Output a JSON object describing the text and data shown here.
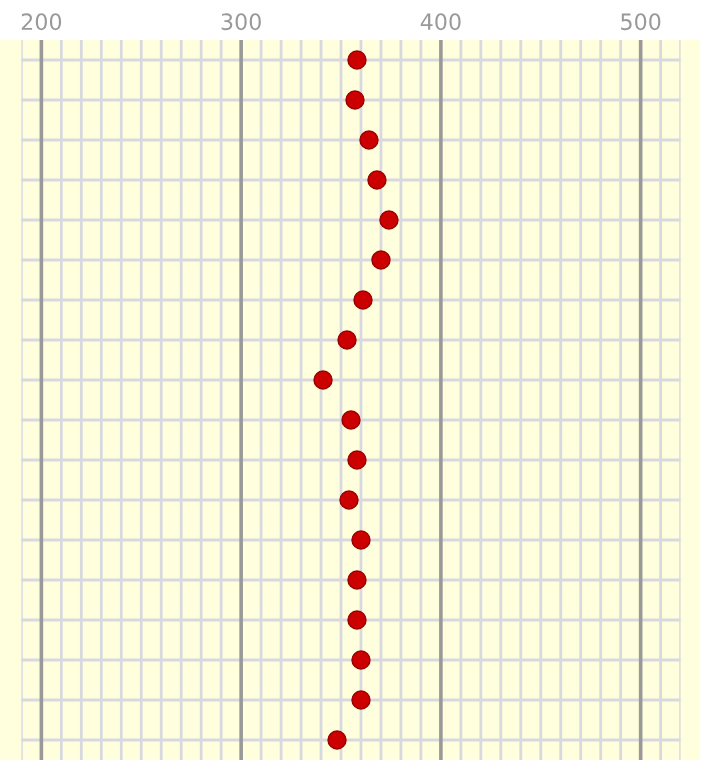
{
  "chart_data": {
    "type": "scatter",
    "orientation": "horizontal",
    "categories": [
      null,
      null,
      null,
      null,
      null,
      null,
      null,
      null,
      null,
      null,
      null,
      null,
      null,
      null,
      null,
      null,
      null,
      null
    ],
    "values": [
      358,
      357,
      364,
      368,
      374,
      370,
      361,
      353,
      341,
      355,
      358,
      354,
      360,
      358,
      358,
      360,
      360,
      348
    ],
    "color": "#cc0000",
    "marker": "circle",
    "xlim": [
      190,
      520
    ],
    "xticks": [
      {
        "value": 190,
        "label": null
      },
      200,
      {
        "value": 210,
        "label": null
      },
      {
        "value": 220,
        "label": null
      },
      {
        "value": 230,
        "label": null
      },
      {
        "value": 240,
        "label": null
      },
      {
        "value": 250,
        "label": null
      },
      {
        "value": 260,
        "label": null
      },
      {
        "value": 270,
        "label": null
      },
      {
        "value": 280,
        "label": null
      },
      {
        "value": 290,
        "label": null
      },
      300,
      {
        "value": 310,
        "label": null
      },
      {
        "value": 320,
        "label": null
      },
      {
        "value": 330,
        "label": null
      },
      {
        "value": 340,
        "label": null
      },
      {
        "value": 350,
        "label": null
      },
      {
        "value": 360,
        "label": null
      },
      {
        "value": 370,
        "label": null
      },
      {
        "value": 380,
        "label": null
      },
      {
        "value": 390,
        "label": null
      },
      400,
      {
        "value": 410,
        "label": null
      },
      {
        "value": 420,
        "label": null
      },
      {
        "value": 430,
        "label": null
      },
      {
        "value": 440,
        "label": null
      },
      {
        "value": 450,
        "label": null
      },
      {
        "value": 460,
        "label": null
      },
      {
        "value": 470,
        "label": null
      },
      {
        "value": 480,
        "label": null
      },
      {
        "value": 490,
        "label": null
      },
      500,
      {
        "value": 510,
        "label": null
      },
      {
        "value": 520,
        "label": null
      }
    ],
    "grid": true,
    "tick_labels": "x"
  }
}
